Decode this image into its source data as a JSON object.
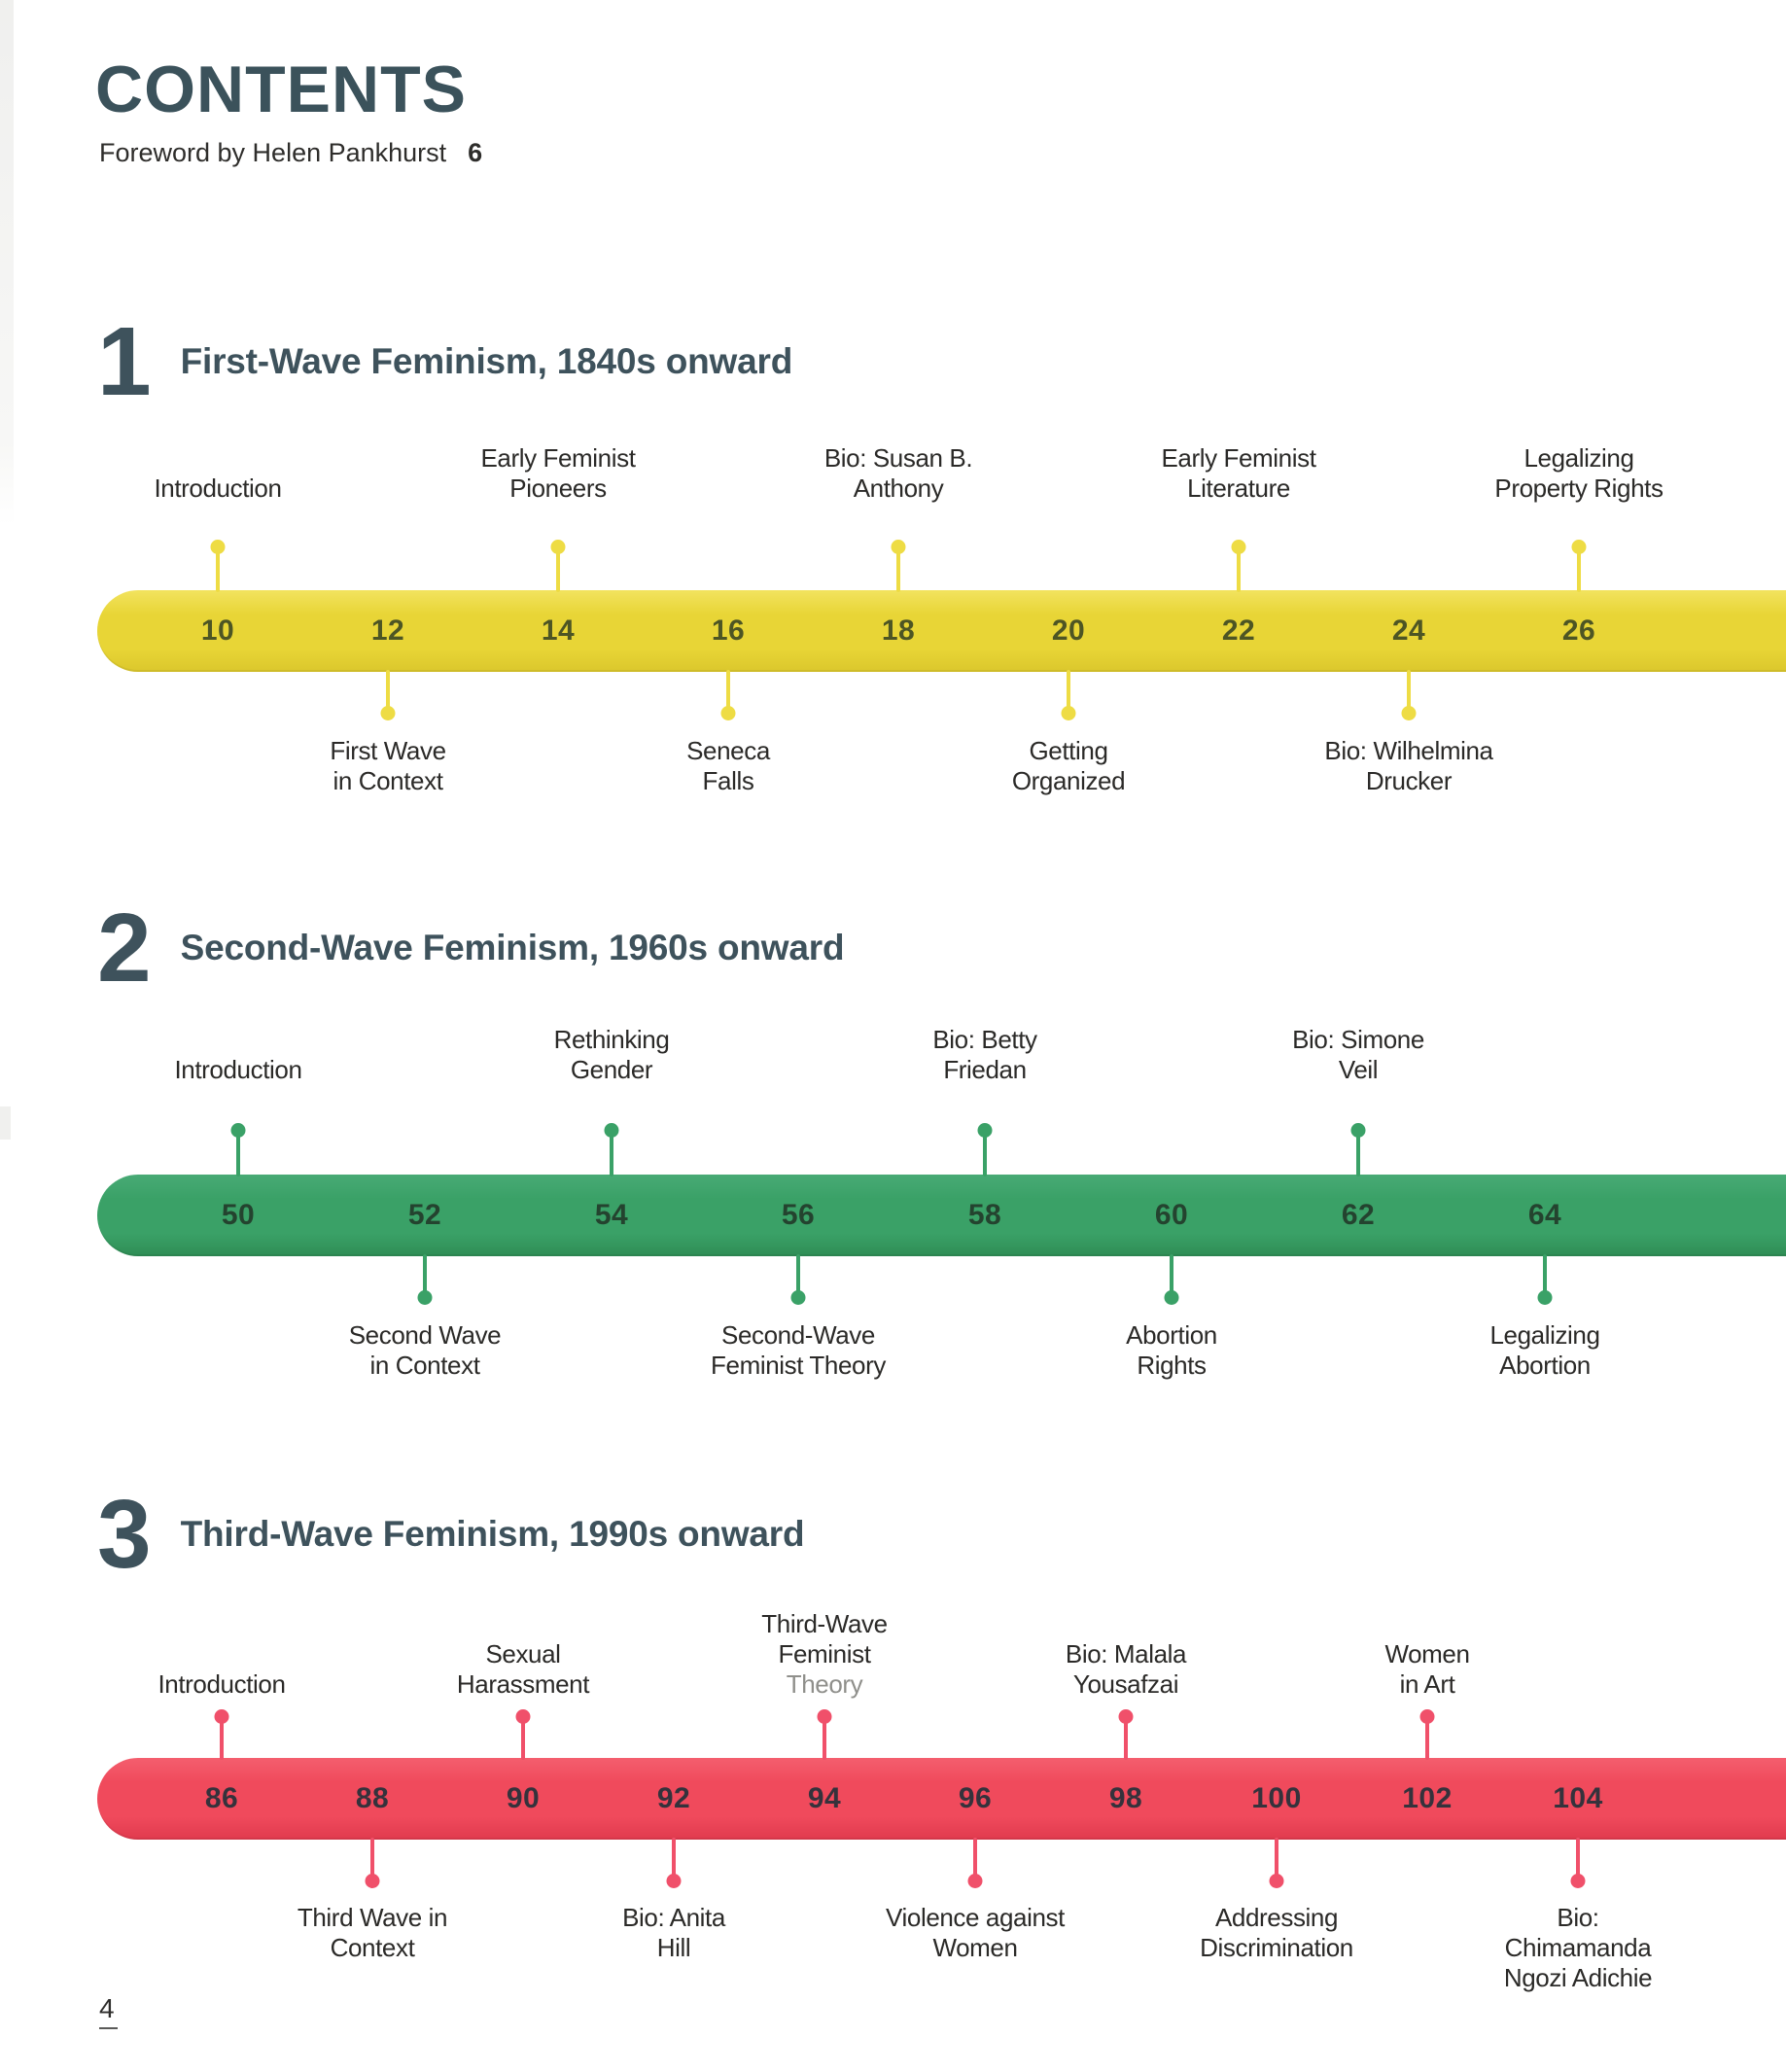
{
  "page": {
    "title": "CONTENTS",
    "foreword_label": "Foreword by Helen Pankhurst",
    "foreword_page": "6",
    "page_number": "4"
  },
  "colors": {
    "heading": "#3e525c",
    "label_text": "#2b2a28"
  },
  "sections": [
    {
      "number": "1",
      "title": "First-Wave Feminism, 1840s onward",
      "colors": {
        "bar": "#e8d536",
        "bar_top": "#f2e35f",
        "bar_bottom": "#dbc72c",
        "pin": "#eedc44",
        "page_numbers": "#4d5524"
      },
      "entries": [
        {
          "page": "10",
          "side": "above",
          "lines": [
            "Introduction"
          ]
        },
        {
          "page": "12",
          "side": "below",
          "lines": [
            "First Wave",
            "in Context"
          ]
        },
        {
          "page": "14",
          "side": "above",
          "lines": [
            "Early Feminist",
            "Pioneers"
          ]
        },
        {
          "page": "16",
          "side": "below",
          "lines": [
            "Seneca",
            "Falls"
          ]
        },
        {
          "page": "18",
          "side": "above",
          "lines": [
            "Bio: Susan B.",
            "Anthony"
          ]
        },
        {
          "page": "20",
          "side": "below",
          "lines": [
            "Getting",
            "Organized"
          ]
        },
        {
          "page": "22",
          "side": "above",
          "lines": [
            "Early Feminist",
            "Literature"
          ]
        },
        {
          "page": "24",
          "side": "below",
          "lines": [
            "Bio: Wilhelmina",
            "Drucker"
          ]
        },
        {
          "page": "26",
          "side": "above",
          "lines": [
            "Legalizing",
            "Property Rights"
          ]
        }
      ]
    },
    {
      "number": "2",
      "title": "Second-Wave Feminism, 1960s onward",
      "colors": {
        "bar": "#3aa167",
        "bar_top": "#48aa75",
        "bar_bottom": "#2f8d55",
        "pin": "#3aa167",
        "page_numbers": "#24432f"
      },
      "entries": [
        {
          "page": "50",
          "side": "above",
          "lines": [
            "Introduction"
          ]
        },
        {
          "page": "52",
          "side": "below",
          "lines": [
            "Second Wave",
            "in Context"
          ]
        },
        {
          "page": "54",
          "side": "above",
          "lines": [
            "Rethinking",
            "Gender"
          ]
        },
        {
          "page": "56",
          "side": "below",
          "lines": [
            "Second-Wave",
            "Feminist Theory"
          ]
        },
        {
          "page": "58",
          "side": "above",
          "lines": [
            "Bio: Betty",
            "Friedan"
          ]
        },
        {
          "page": "60",
          "side": "below",
          "lines": [
            "Abortion",
            "Rights"
          ]
        },
        {
          "page": "62",
          "side": "above",
          "lines": [
            "Bio: Simone",
            "Veil"
          ]
        },
        {
          "page": "64",
          "side": "below",
          "lines": [
            "Legalizing",
            "Abortion"
          ]
        }
      ]
    },
    {
      "number": "3",
      "title": "Third-Wave Feminism, 1990s onward",
      "colors": {
        "bar": "#f04a5c",
        "bar_top": "#f45e6e",
        "bar_bottom": "#e03a4e",
        "pin": "#f0506a",
        "page_numbers": "#35323c"
      },
      "entries": [
        {
          "page": "86",
          "side": "above",
          "lines": [
            "Introduction"
          ]
        },
        {
          "page": "88",
          "side": "below",
          "lines": [
            "Third Wave in",
            "Context"
          ]
        },
        {
          "page": "90",
          "side": "above",
          "lines": [
            "Sexual",
            "Harassment"
          ]
        },
        {
          "page": "92",
          "side": "below",
          "lines": [
            "Bio: Anita",
            "Hill"
          ]
        },
        {
          "page": "94",
          "side": "above",
          "lines": [
            "Third-Wave",
            "Feminist",
            "Theory"
          ]
        },
        {
          "page": "96",
          "side": "below",
          "lines": [
            "Violence against",
            "Women"
          ]
        },
        {
          "page": "98",
          "side": "above",
          "lines": [
            "Bio: Malala",
            "Yousafzai"
          ]
        },
        {
          "page": "100",
          "side": "below",
          "lines": [
            "Addressing",
            "Discrimination"
          ]
        },
        {
          "page": "102",
          "side": "above",
          "lines": [
            "Women",
            "in Art"
          ]
        },
        {
          "page": "104",
          "side": "below",
          "lines": [
            "Bio:",
            "Chimamanda",
            "Ngozi Adichie"
          ]
        }
      ]
    }
  ]
}
